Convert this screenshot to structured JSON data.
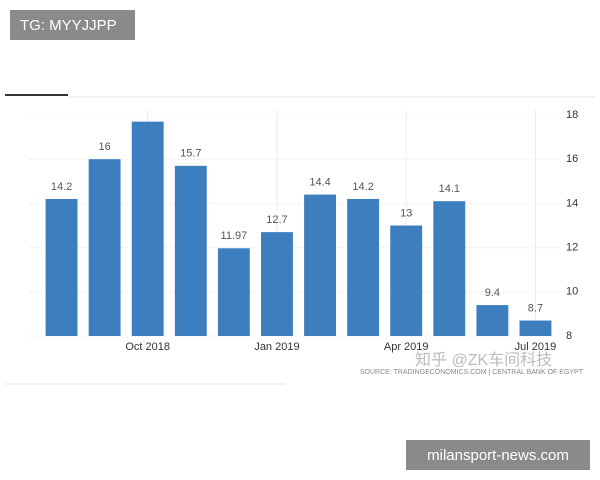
{
  "chart_data": {
    "type": "bar",
    "categories": [
      null,
      null,
      "Oct 2018",
      null,
      null,
      "Jan 2019",
      null,
      null,
      "Apr 2019",
      null,
      null,
      "Jul 2019"
    ],
    "values": [
      14.2,
      16,
      17.7,
      15.7,
      11.97,
      12.7,
      14.4,
      14.2,
      13,
      14.1,
      9.4,
      8.7
    ],
    "value_labels": [
      "14.2",
      "16",
      null,
      "15.7",
      "11.97",
      "12.7",
      "14.4",
      "14.2",
      "13",
      "14.1",
      "9.4",
      "8.7"
    ],
    "color": "#3d7ebf",
    "ylim": [
      8,
      18
    ],
    "yticks": [
      8,
      10,
      12,
      14,
      16,
      18
    ],
    "grid": true,
    "source": "SOURCE: TRADINGECONOMICS.COM | CENTRAL BANK OF EGYPT"
  },
  "overlays": {
    "top_tag": "TG: MYYJJPP",
    "watermark": "知乎 @ZK车间科技",
    "site": "milansport-news.com"
  }
}
